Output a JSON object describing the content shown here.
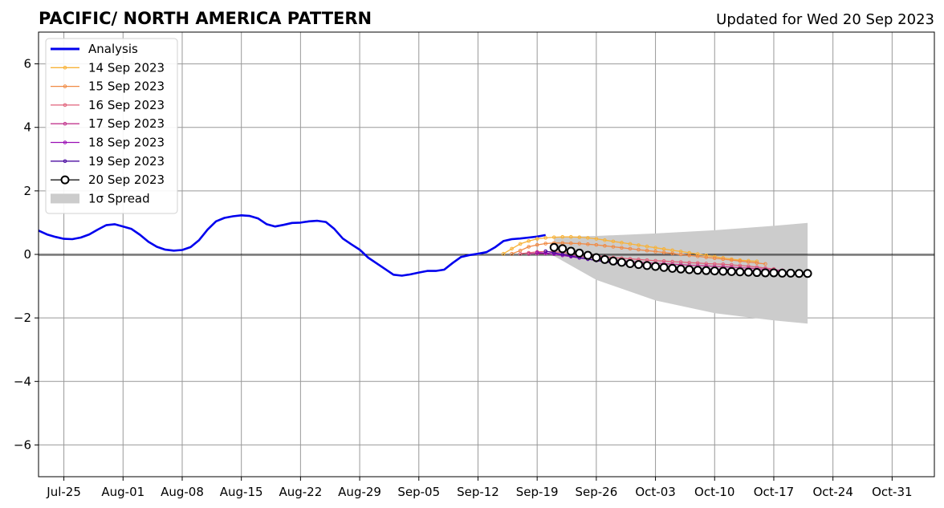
{
  "chart_data": {
    "type": "line",
    "title": "PACIFIC/ NORTH AMERICA PATTERN",
    "subtitle": "Updated for Wed 20 Sep 2023",
    "xlabel": "",
    "ylabel": "",
    "xlim": [
      "2023-07-22",
      "2023-11-05"
    ],
    "ylim": [
      -7,
      7
    ],
    "grid": true,
    "legend_position": "top-left",
    "x_ticks": [
      {
        "date": "2023-07-25",
        "label": "Jul-25"
      },
      {
        "date": "2023-08-01",
        "label": "Aug-01"
      },
      {
        "date": "2023-08-08",
        "label": "Aug-08"
      },
      {
        "date": "2023-08-15",
        "label": "Aug-15"
      },
      {
        "date": "2023-08-22",
        "label": "Aug-22"
      },
      {
        "date": "2023-08-29",
        "label": "Aug-29"
      },
      {
        "date": "2023-09-05",
        "label": "Sep-05"
      },
      {
        "date": "2023-09-12",
        "label": "Sep-12"
      },
      {
        "date": "2023-09-19",
        "label": "Sep-19"
      },
      {
        "date": "2023-09-26",
        "label": "Sep-26"
      },
      {
        "date": "2023-10-03",
        "label": "Oct-03"
      },
      {
        "date": "2023-10-10",
        "label": "Oct-10"
      },
      {
        "date": "2023-10-17",
        "label": "Oct-17"
      },
      {
        "date": "2023-10-24",
        "label": "Oct-24"
      },
      {
        "date": "2023-10-31",
        "label": "Oct-31"
      }
    ],
    "y_ticks": [
      {
        "value": 6,
        "label": "6"
      },
      {
        "value": 4,
        "label": "4"
      },
      {
        "value": 2,
        "label": "2"
      },
      {
        "value": 0,
        "label": "0"
      },
      {
        "value": -2,
        "label": "−2"
      },
      {
        "value": -4,
        "label": "−4"
      },
      {
        "value": -6,
        "label": "−6"
      }
    ],
    "series": [
      {
        "name": "Analysis",
        "color": "#0000ee",
        "style": "line",
        "points": [
          [
            "2023-07-22",
            0.75
          ],
          [
            "2023-07-23",
            0.63
          ],
          [
            "2023-07-24",
            0.55
          ],
          [
            "2023-07-25",
            0.49
          ],
          [
            "2023-07-26",
            0.48
          ],
          [
            "2023-07-27",
            0.53
          ],
          [
            "2023-07-28",
            0.63
          ],
          [
            "2023-07-29",
            0.78
          ],
          [
            "2023-07-30",
            0.92
          ],
          [
            "2023-07-31",
            0.95
          ],
          [
            "2023-08-01",
            0.88
          ],
          [
            "2023-08-02",
            0.8
          ],
          [
            "2023-08-03",
            0.62
          ],
          [
            "2023-08-04",
            0.4
          ],
          [
            "2023-08-05",
            0.24
          ],
          [
            "2023-08-06",
            0.15
          ],
          [
            "2023-08-07",
            0.12
          ],
          [
            "2023-08-08",
            0.14
          ],
          [
            "2023-08-09",
            0.23
          ],
          [
            "2023-08-10",
            0.45
          ],
          [
            "2023-08-11",
            0.78
          ],
          [
            "2023-08-12",
            1.04
          ],
          [
            "2023-08-13",
            1.15
          ],
          [
            "2023-08-14",
            1.2
          ],
          [
            "2023-08-15",
            1.23
          ],
          [
            "2023-08-16",
            1.21
          ],
          [
            "2023-08-17",
            1.13
          ],
          [
            "2023-08-18",
            0.95
          ],
          [
            "2023-08-19",
            0.88
          ],
          [
            "2023-08-20",
            0.93
          ],
          [
            "2023-08-21",
            0.99
          ],
          [
            "2023-08-22",
            1.0
          ],
          [
            "2023-08-23",
            1.04
          ],
          [
            "2023-08-24",
            1.06
          ],
          [
            "2023-08-25",
            1.02
          ],
          [
            "2023-08-26",
            0.8
          ],
          [
            "2023-08-27",
            0.5
          ],
          [
            "2023-08-28",
            0.32
          ],
          [
            "2023-08-29",
            0.15
          ],
          [
            "2023-08-30",
            -0.1
          ],
          [
            "2023-08-31",
            -0.28
          ],
          [
            "2023-09-01",
            -0.46
          ],
          [
            "2023-09-02",
            -0.64
          ],
          [
            "2023-09-03",
            -0.67
          ],
          [
            "2023-09-04",
            -0.63
          ],
          [
            "2023-09-05",
            -0.57
          ],
          [
            "2023-09-06",
            -0.52
          ],
          [
            "2023-09-07",
            -0.52
          ],
          [
            "2023-09-08",
            -0.48
          ],
          [
            "2023-09-09",
            -0.27
          ],
          [
            "2023-09-10",
            -0.08
          ],
          [
            "2023-09-11",
            -0.02
          ],
          [
            "2023-09-12",
            0.02
          ],
          [
            "2023-09-13",
            0.07
          ],
          [
            "2023-09-14",
            0.22
          ],
          [
            "2023-09-15",
            0.42
          ],
          [
            "2023-09-16",
            0.48
          ],
          [
            "2023-09-17",
            0.5
          ],
          [
            "2023-09-18",
            0.53
          ],
          [
            "2023-09-19",
            0.56
          ],
          [
            "2023-09-20",
            0.61
          ]
        ]
      },
      {
        "name": "14 Sep 2023",
        "color": "#f8b237",
        "style": "small-markers",
        "start": "2023-09-15",
        "values": [
          0.02,
          0.18,
          0.33,
          0.42,
          0.49,
          0.52,
          0.54,
          0.55,
          0.55,
          0.54,
          0.52,
          0.49,
          0.45,
          0.41,
          0.37,
          0.33,
          0.29,
          0.25,
          0.21,
          0.17,
          0.13,
          0.09,
          0.05,
          0.01,
          -0.03,
          -0.07,
          -0.11,
          -0.15,
          -0.18,
          -0.2,
          -0.22
        ]
      },
      {
        "name": "15 Sep 2023",
        "color": "#f08a45",
        "style": "small-markers",
        "start": "2023-09-16",
        "values": [
          0.02,
          0.12,
          0.24,
          0.3,
          0.34,
          0.36,
          0.36,
          0.35,
          0.34,
          0.32,
          0.3,
          0.27,
          0.24,
          0.21,
          0.18,
          0.15,
          0.12,
          0.09,
          0.06,
          0.03,
          0.0,
          -0.03,
          -0.06,
          -0.09,
          -0.12,
          -0.15,
          -0.18,
          -0.21,
          -0.24,
          -0.27,
          -0.3
        ]
      },
      {
        "name": "16 Sep 2023",
        "color": "#e0607a",
        "style": "small-markers",
        "start": "2023-09-17",
        "values": [
          0.02,
          0.05,
          0.08,
          0.09,
          0.08,
          0.06,
          0.04,
          0.02,
          -0.01,
          -0.04,
          -0.07,
          -0.1,
          -0.12,
          -0.14,
          -0.16,
          -0.18,
          -0.2,
          -0.21,
          -0.23,
          -0.24,
          -0.26,
          -0.27,
          -0.29,
          -0.3,
          -0.31,
          -0.33,
          -0.35,
          -0.37,
          -0.4,
          -0.43,
          -0.46
        ]
      },
      {
        "name": "17 Sep 2023",
        "color": "#c2378f",
        "style": "small-markers",
        "start": "2023-09-18",
        "values": [
          0.02,
          0.03,
          0.03,
          0.02,
          0.0,
          -0.03,
          -0.06,
          -0.09,
          -0.12,
          -0.15,
          -0.17,
          -0.2,
          -0.22,
          -0.24,
          -0.26,
          -0.28,
          -0.29,
          -0.31,
          -0.32,
          -0.34,
          -0.35,
          -0.36,
          -0.38,
          -0.39,
          -0.4,
          -0.42,
          -0.43,
          -0.45,
          -0.47,
          -0.49,
          -0.5
        ]
      },
      {
        "name": "18 Sep 2023",
        "color": "#9a0fb5",
        "style": "small-markers",
        "start": "2023-09-19",
        "values": [
          0.06,
          0.04,
          0.01,
          -0.03,
          -0.07,
          -0.11,
          -0.15,
          -0.19,
          -0.22,
          -0.25,
          -0.28,
          -0.31,
          -0.33,
          -0.35,
          -0.37,
          -0.39,
          -0.41,
          -0.42,
          -0.44,
          -0.45,
          -0.46,
          -0.47,
          -0.48,
          -0.49,
          -0.5,
          -0.51,
          -0.52,
          -0.53,
          -0.54,
          -0.55,
          -0.56
        ]
      },
      {
        "name": "19 Sep 2023",
        "color": "#4b0ca0",
        "style": "small-markers",
        "start": "2023-09-20",
        "values": [
          0.1,
          0.05,
          0.0,
          -0.05,
          -0.1,
          -0.15,
          -0.19,
          -0.23,
          -0.27,
          -0.3,
          -0.33,
          -0.36,
          -0.38,
          -0.4,
          -0.42,
          -0.44,
          -0.45,
          -0.47,
          -0.48,
          -0.49,
          -0.5,
          -0.51,
          -0.52,
          -0.53,
          -0.54,
          -0.55,
          -0.56,
          -0.57,
          -0.58,
          -0.59,
          -0.6
        ]
      },
      {
        "name": "20 Sep 2023",
        "color": "#000000",
        "style": "open-circles",
        "start": "2023-09-21",
        "values": [
          0.22,
          0.18,
          0.1,
          0.04,
          -0.03,
          -0.1,
          -0.16,
          -0.21,
          -0.25,
          -0.29,
          -0.32,
          -0.35,
          -0.38,
          -0.41,
          -0.44,
          -0.46,
          -0.48,
          -0.5,
          -0.51,
          -0.52,
          -0.53,
          -0.54,
          -0.55,
          -0.56,
          -0.57,
          -0.58,
          -0.58,
          -0.59,
          -0.59,
          -0.6,
          -0.6
        ]
      }
    ],
    "spread": {
      "name": "1σ Spread",
      "color": "#cccccc",
      "dates": [
        "2023-09-21",
        "2023-09-26",
        "2023-10-03",
        "2023-10-10",
        "2023-10-17",
        "2023-10-21"
      ],
      "upper": [
        0.55,
        0.58,
        0.66,
        0.76,
        0.9,
        0.99
      ],
      "lower": [
        -0.05,
        -0.8,
        -1.45,
        -1.85,
        -2.08,
        -2.18
      ]
    },
    "legend_order": [
      "Analysis",
      "14 Sep 2023",
      "15 Sep 2023",
      "16 Sep 2023",
      "17 Sep 2023",
      "18 Sep 2023",
      "19 Sep 2023",
      "20 Sep 2023",
      "1σ Spread"
    ]
  }
}
